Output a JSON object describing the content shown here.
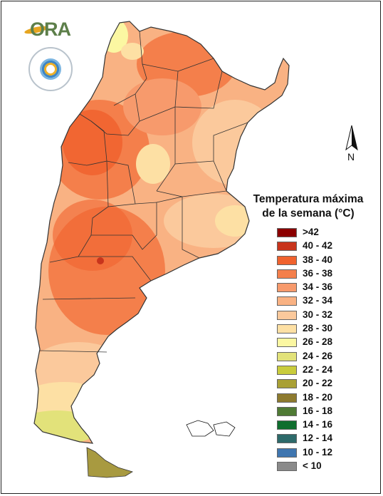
{
  "logo": {
    "text": "ORA",
    "seal_text": "SERVICIO METEOROLÓGICO NACIONAL · ARGENTINA"
  },
  "north_arrow": {
    "label": "N"
  },
  "legend": {
    "title_line1": "Temperatura máxima",
    "title_line2": "de la semana (°C)",
    "items": [
      {
        "label": ">42",
        "color": "#8b0000"
      },
      {
        "label": "40 - 42",
        "color": "#c8341c"
      },
      {
        "label": "38 - 40",
        "color": "#f0622e"
      },
      {
        "label": "36 - 38",
        "color": "#f47f4b"
      },
      {
        "label": "34 - 36",
        "color": "#f79a6c"
      },
      {
        "label": "32 - 34",
        "color": "#f9b283"
      },
      {
        "label": "30 - 32",
        "color": "#fbc99c"
      },
      {
        "label": "28 - 30",
        "color": "#fde0a4"
      },
      {
        "label": "26 - 28",
        "color": "#fbf7a2"
      },
      {
        "label": "24 - 26",
        "color": "#e2e27a"
      },
      {
        "label": "22 - 24",
        "color": "#c9cc3c"
      },
      {
        "label": "20 - 22",
        "color": "#a9a035"
      },
      {
        "label": "18 - 20",
        "color": "#8d7a2e"
      },
      {
        "label": "16 - 18",
        "color": "#4f7a34"
      },
      {
        "label": "14 - 16",
        "color": "#0f6e2e"
      },
      {
        "label": "12 - 14",
        "color": "#2d6a6a"
      },
      {
        "label": "10 - 12",
        "color": "#3f76b0"
      },
      {
        "label": "< 10",
        "color": "#8a8a8a"
      }
    ]
  }
}
